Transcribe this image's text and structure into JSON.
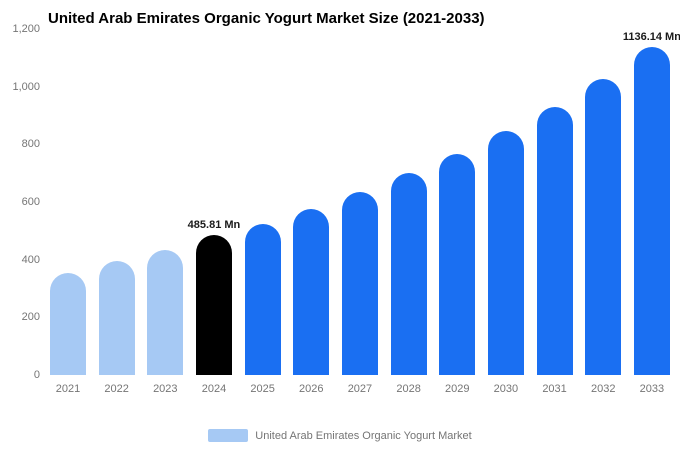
{
  "chart_data": {
    "type": "bar",
    "title": "United Arab Emirates Organic Yogurt Market Size (2021-2033)",
    "categories": [
      "2021",
      "2022",
      "2023",
      "2024",
      "2025",
      "2026",
      "2027",
      "2028",
      "2029",
      "2030",
      "2031",
      "2032",
      "2033"
    ],
    "values": [
      355,
      395,
      435,
      485.81,
      525,
      575,
      635,
      700,
      765,
      845,
      930,
      1025,
      1136.14
    ],
    "bar_colors": [
      "#a6c9f4",
      "#a6c9f4",
      "#a6c9f4",
      "#000000",
      "#1a6ff2",
      "#1a6ff2",
      "#1a6ff2",
      "#1a6ff2",
      "#1a6ff2",
      "#1a6ff2",
      "#1a6ff2",
      "#1a6ff2",
      "#1a6ff2"
    ],
    "annotations": [
      {
        "index": 3,
        "text": "485.81 Mn"
      },
      {
        "index": 12,
        "text": "1136.14 Mn"
      }
    ],
    "ylim": [
      0,
      1200
    ],
    "yticks": [
      {
        "value": 1200,
        "label": "1,200"
      },
      {
        "value": 1000,
        "label": "1,000"
      },
      {
        "value": 800,
        "label": "800"
      },
      {
        "value": 600,
        "label": "600"
      },
      {
        "value": 400,
        "label": "400"
      },
      {
        "value": 200,
        "label": "200"
      },
      {
        "value": 0,
        "label": "0"
      }
    ],
    "xlabel": "",
    "ylabel": "",
    "grid": false,
    "legend_position": "bottom",
    "legend": "United Arab Emirates Organic Yogurt Market",
    "colors": {
      "historical": "#a6c9f4",
      "base_year": "#000000",
      "forecast": "#1a6ff2"
    }
  }
}
